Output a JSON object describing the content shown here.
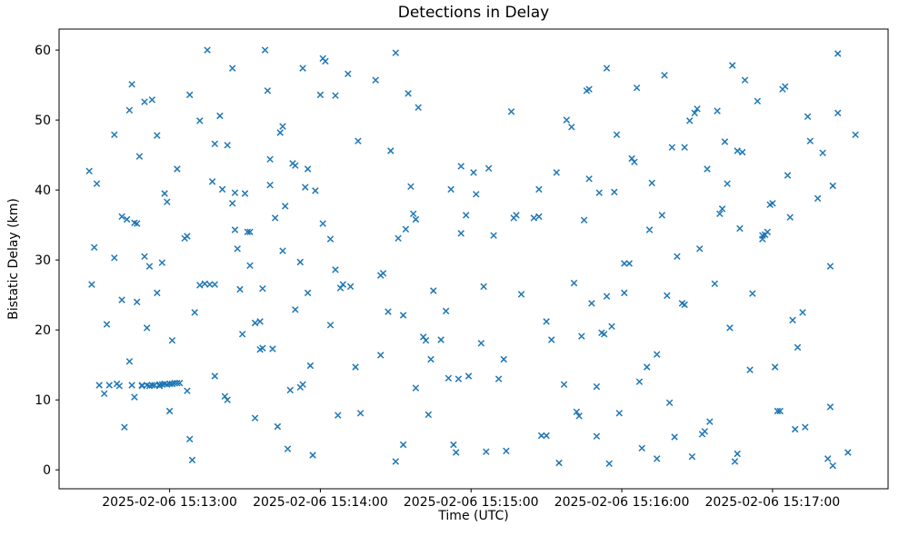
{
  "chart_data": {
    "type": "scatter",
    "title": "Detections in Delay",
    "xlabel": "Time (UTC)",
    "ylabel": "Bistatic Delay (km)",
    "marker": "x",
    "marker_color": "#1f77b4",
    "grid": false,
    "legend": null,
    "x_encoding": "seconds after 2025-02-06 15:12:00 UTC",
    "xlim": [
      16,
      346
    ],
    "ylim": [
      -2.7,
      63
    ],
    "yticks": [
      0,
      10,
      20,
      30,
      40,
      50,
      60
    ],
    "xticks": [
      {
        "pos": 60,
        "label": "2025-02-06 15:13:00"
      },
      {
        "pos": 120,
        "label": "2025-02-06 15:14:00"
      },
      {
        "pos": 180,
        "label": "2025-02-06 15:15:00"
      },
      {
        "pos": 240,
        "label": "2025-02-06 15:16:00"
      },
      {
        "pos": 300,
        "label": "2025-02-06 15:17:00"
      }
    ],
    "points": [
      [
        28,
        42.7
      ],
      [
        31,
        40.9
      ],
      [
        30,
        31.8
      ],
      [
        29,
        26.5
      ],
      [
        32,
        12.1
      ],
      [
        34,
        10.9
      ],
      [
        35,
        20.8
      ],
      [
        36,
        12.1
      ],
      [
        38,
        30.3
      ],
      [
        38,
        47.9
      ],
      [
        39,
        12.3
      ],
      [
        40,
        12.0
      ],
      [
        41,
        24.3
      ],
      [
        41,
        36.2
      ],
      [
        42,
        6.1
      ],
      [
        43,
        35.8
      ],
      [
        44,
        15.5
      ],
      [
        44,
        51.4
      ],
      [
        45,
        55.1
      ],
      [
        45,
        12.1
      ],
      [
        46,
        10.4
      ],
      [
        46,
        35.3
      ],
      [
        47,
        35.2
      ],
      [
        47,
        24.0
      ],
      [
        48,
        44.8
      ],
      [
        49,
        12.1
      ],
      [
        49,
        12.0
      ],
      [
        50,
        30.5
      ],
      [
        50,
        52.6
      ],
      [
        51,
        20.3
      ],
      [
        51,
        12.1
      ],
      [
        52,
        12.0
      ],
      [
        52,
        29.1
      ],
      [
        53,
        52.9
      ],
      [
        53,
        12.1
      ],
      [
        54,
        12.1
      ],
      [
        55,
        25.3
      ],
      [
        55,
        47.8
      ],
      [
        56,
        12.2
      ],
      [
        56,
        12.0
      ],
      [
        57,
        29.6
      ],
      [
        57,
        12.2
      ],
      [
        58,
        12.3
      ],
      [
        58,
        39.5
      ],
      [
        59,
        38.3
      ],
      [
        59,
        12.2
      ],
      [
        60,
        12.3
      ],
      [
        60,
        8.4
      ],
      [
        61,
        18.5
      ],
      [
        61,
        12.3
      ],
      [
        62,
        12.4
      ],
      [
        63,
        12.4
      ],
      [
        63,
        43.0
      ],
      [
        64,
        12.4
      ],
      [
        66,
        33.1
      ],
      [
        67,
        33.4
      ],
      [
        67,
        11.3
      ],
      [
        68,
        53.6
      ],
      [
        68,
        4.4
      ],
      [
        69,
        1.4
      ],
      [
        70,
        22.5
      ],
      [
        72,
        26.4
      ],
      [
        72,
        49.9
      ],
      [
        74,
        26.6
      ],
      [
        75,
        60.0
      ],
      [
        76,
        26.5
      ],
      [
        77,
        41.2
      ],
      [
        78,
        26.5
      ],
      [
        78,
        13.4
      ],
      [
        78,
        46.6
      ],
      [
        80,
        50.6
      ],
      [
        81,
        40.1
      ],
      [
        82,
        10.5
      ],
      [
        83,
        10.0
      ],
      [
        83,
        46.4
      ],
      [
        85,
        57.4
      ],
      [
        85,
        38.1
      ],
      [
        86,
        39.6
      ],
      [
        86,
        34.3
      ],
      [
        87,
        31.6
      ],
      [
        88,
        25.8
      ],
      [
        89,
        19.4
      ],
      [
        90,
        39.5
      ],
      [
        91,
        34.0
      ],
      [
        92,
        34.0
      ],
      [
        92,
        29.2
      ],
      [
        94,
        7.4
      ],
      [
        94,
        21.0
      ],
      [
        96,
        17.2
      ],
      [
        97,
        17.4
      ],
      [
        96,
        21.2
      ],
      [
        97,
        25.9
      ],
      [
        98,
        60.0
      ],
      [
        99,
        54.2
      ],
      [
        100,
        44.4
      ],
      [
        100,
        40.7
      ],
      [
        101,
        17.3
      ],
      [
        102,
        36.0
      ],
      [
        103,
        6.2
      ],
      [
        104,
        48.2
      ],
      [
        105,
        49.1
      ],
      [
        105,
        31.3
      ],
      [
        106,
        37.7
      ],
      [
        107,
        3.0
      ],
      [
        108,
        11.4
      ],
      [
        110,
        22.9
      ],
      [
        109,
        43.8
      ],
      [
        110,
        43.5
      ],
      [
        112,
        29.7
      ],
      [
        112,
        11.8
      ],
      [
        113,
        12.2
      ],
      [
        113,
        57.4
      ],
      [
        114,
        40.4
      ],
      [
        115,
        43.0
      ],
      [
        115,
        25.3
      ],
      [
        116,
        14.9
      ],
      [
        117,
        2.1
      ],
      [
        118,
        39.9
      ],
      [
        120,
        53.6
      ],
      [
        121,
        35.2
      ],
      [
        121,
        58.8
      ],
      [
        122,
        58.4
      ],
      [
        124,
        33.0
      ],
      [
        124,
        20.7
      ],
      [
        126,
        28.6
      ],
      [
        126,
        53.5
      ],
      [
        127,
        7.8
      ],
      [
        128,
        26.0
      ],
      [
        129,
        26.5
      ],
      [
        131,
        56.6
      ],
      [
        132,
        26.2
      ],
      [
        134,
        14.7
      ],
      [
        135,
        47.0
      ],
      [
        136,
        8.1
      ],
      [
        142,
        55.7
      ],
      [
        144,
        16.4
      ],
      [
        144,
        27.8
      ],
      [
        145,
        28.1
      ],
      [
        147,
        22.6
      ],
      [
        148,
        45.6
      ],
      [
        150,
        1.2
      ],
      [
        150,
        59.6
      ],
      [
        151,
        33.1
      ],
      [
        153,
        22.1
      ],
      [
        153,
        3.6
      ],
      [
        154,
        34.4
      ],
      [
        155,
        53.8
      ],
      [
        156,
        40.5
      ],
      [
        157,
        36.6
      ],
      [
        158,
        35.8
      ],
      [
        158,
        11.7
      ],
      [
        159,
        51.8
      ],
      [
        161,
        19.0
      ],
      [
        162,
        18.5
      ],
      [
        163,
        7.9
      ],
      [
        164,
        15.8
      ],
      [
        165,
        25.6
      ],
      [
        168,
        18.6
      ],
      [
        170,
        22.7
      ],
      [
        171,
        13.1
      ],
      [
        172,
        40.1
      ],
      [
        173,
        3.6
      ],
      [
        174,
        2.5
      ],
      [
        176,
        33.8
      ],
      [
        175,
        13.0
      ],
      [
        176,
        43.4
      ],
      [
        178,
        36.4
      ],
      [
        179,
        13.4
      ],
      [
        181,
        42.5
      ],
      [
        182,
        39.4
      ],
      [
        184,
        18.1
      ],
      [
        185,
        26.2
      ],
      [
        186,
        2.6
      ],
      [
        187,
        43.1
      ],
      [
        189,
        33.5
      ],
      [
        191,
        13.0
      ],
      [
        193,
        15.8
      ],
      [
        194,
        2.7
      ],
      [
        196,
        51.2
      ],
      [
        197,
        36.0
      ],
      [
        198,
        36.4
      ],
      [
        200,
        25.1
      ],
      [
        205,
        36.0
      ],
      [
        207,
        36.2
      ],
      [
        207,
        40.1
      ],
      [
        208,
        4.9
      ],
      [
        210,
        4.9
      ],
      [
        210,
        21.2
      ],
      [
        212,
        18.6
      ],
      [
        214,
        42.5
      ],
      [
        215,
        1.0
      ],
      [
        217,
        12.2
      ],
      [
        218,
        50.0
      ],
      [
        220,
        49.0
      ],
      [
        221,
        26.7
      ],
      [
        222,
        8.3
      ],
      [
        223,
        7.7
      ],
      [
        224,
        19.1
      ],
      [
        225,
        35.7
      ],
      [
        226,
        54.2
      ],
      [
        227,
        54.4
      ],
      [
        227,
        41.6
      ],
      [
        228,
        23.8
      ],
      [
        230,
        4.8
      ],
      [
        230,
        11.9
      ],
      [
        231,
        39.6
      ],
      [
        232,
        19.6
      ],
      [
        233,
        19.4
      ],
      [
        234,
        24.8
      ],
      [
        234,
        57.4
      ],
      [
        235,
        0.9
      ],
      [
        236,
        20.5
      ],
      [
        237,
        39.7
      ],
      [
        238,
        47.9
      ],
      [
        239,
        8.1
      ],
      [
        241,
        25.3
      ],
      [
        241,
        29.5
      ],
      [
        243,
        29.5
      ],
      [
        244,
        44.5
      ],
      [
        245,
        44.0
      ],
      [
        246,
        54.6
      ],
      [
        247,
        12.6
      ],
      [
        248,
        3.1
      ],
      [
        250,
        14.7
      ],
      [
        251,
        34.3
      ],
      [
        252,
        41.0
      ],
      [
        254,
        1.6
      ],
      [
        254,
        16.5
      ],
      [
        256,
        36.4
      ],
      [
        257,
        56.4
      ],
      [
        258,
        24.9
      ],
      [
        259,
        9.6
      ],
      [
        260,
        46.1
      ],
      [
        261,
        4.7
      ],
      [
        262,
        30.5
      ],
      [
        264,
        23.8
      ],
      [
        265,
        23.6
      ],
      [
        265,
        46.1
      ],
      [
        267,
        49.9
      ],
      [
        268,
        1.9
      ],
      [
        269,
        51.0
      ],
      [
        270,
        51.6
      ],
      [
        271,
        31.6
      ],
      [
        272,
        5.1
      ],
      [
        273,
        5.5
      ],
      [
        274,
        43.0
      ],
      [
        275,
        6.9
      ],
      [
        277,
        26.6
      ],
      [
        278,
        51.3
      ],
      [
        279,
        36.6
      ],
      [
        280,
        37.3
      ],
      [
        281,
        46.9
      ],
      [
        282,
        40.9
      ],
      [
        283,
        20.3
      ],
      [
        284,
        57.8
      ],
      [
        285,
        1.2
      ],
      [
        286,
        2.3
      ],
      [
        287,
        34.5
      ],
      [
        286,
        45.6
      ],
      [
        288,
        45.4
      ],
      [
        289,
        55.7
      ],
      [
        291,
        14.3
      ],
      [
        292,
        25.2
      ],
      [
        294,
        52.7
      ],
      [
        296,
        33.5
      ],
      [
        296,
        33.0
      ],
      [
        297,
        33.6
      ],
      [
        298,
        34.0
      ],
      [
        299,
        37.9
      ],
      [
        300,
        38.1
      ],
      [
        301,
        14.7
      ],
      [
        302,
        8.4
      ],
      [
        303,
        8.4
      ],
      [
        304,
        54.4
      ],
      [
        305,
        54.8
      ],
      [
        306,
        42.1
      ],
      [
        307,
        36.1
      ],
      [
        308,
        21.4
      ],
      [
        309,
        5.8
      ],
      [
        310,
        17.5
      ],
      [
        312,
        22.5
      ],
      [
        313,
        6.1
      ],
      [
        314,
        50.5
      ],
      [
        315,
        47.0
      ],
      [
        318,
        38.8
      ],
      [
        320,
        45.3
      ],
      [
        322,
        1.6
      ],
      [
        323,
        29.1
      ],
      [
        323,
        9.0
      ],
      [
        324,
        0.6
      ],
      [
        324,
        40.6
      ],
      [
        326,
        51.0
      ],
      [
        326,
        59.5
      ],
      [
        330,
        2.5
      ],
      [
        333,
        47.9
      ]
    ]
  }
}
